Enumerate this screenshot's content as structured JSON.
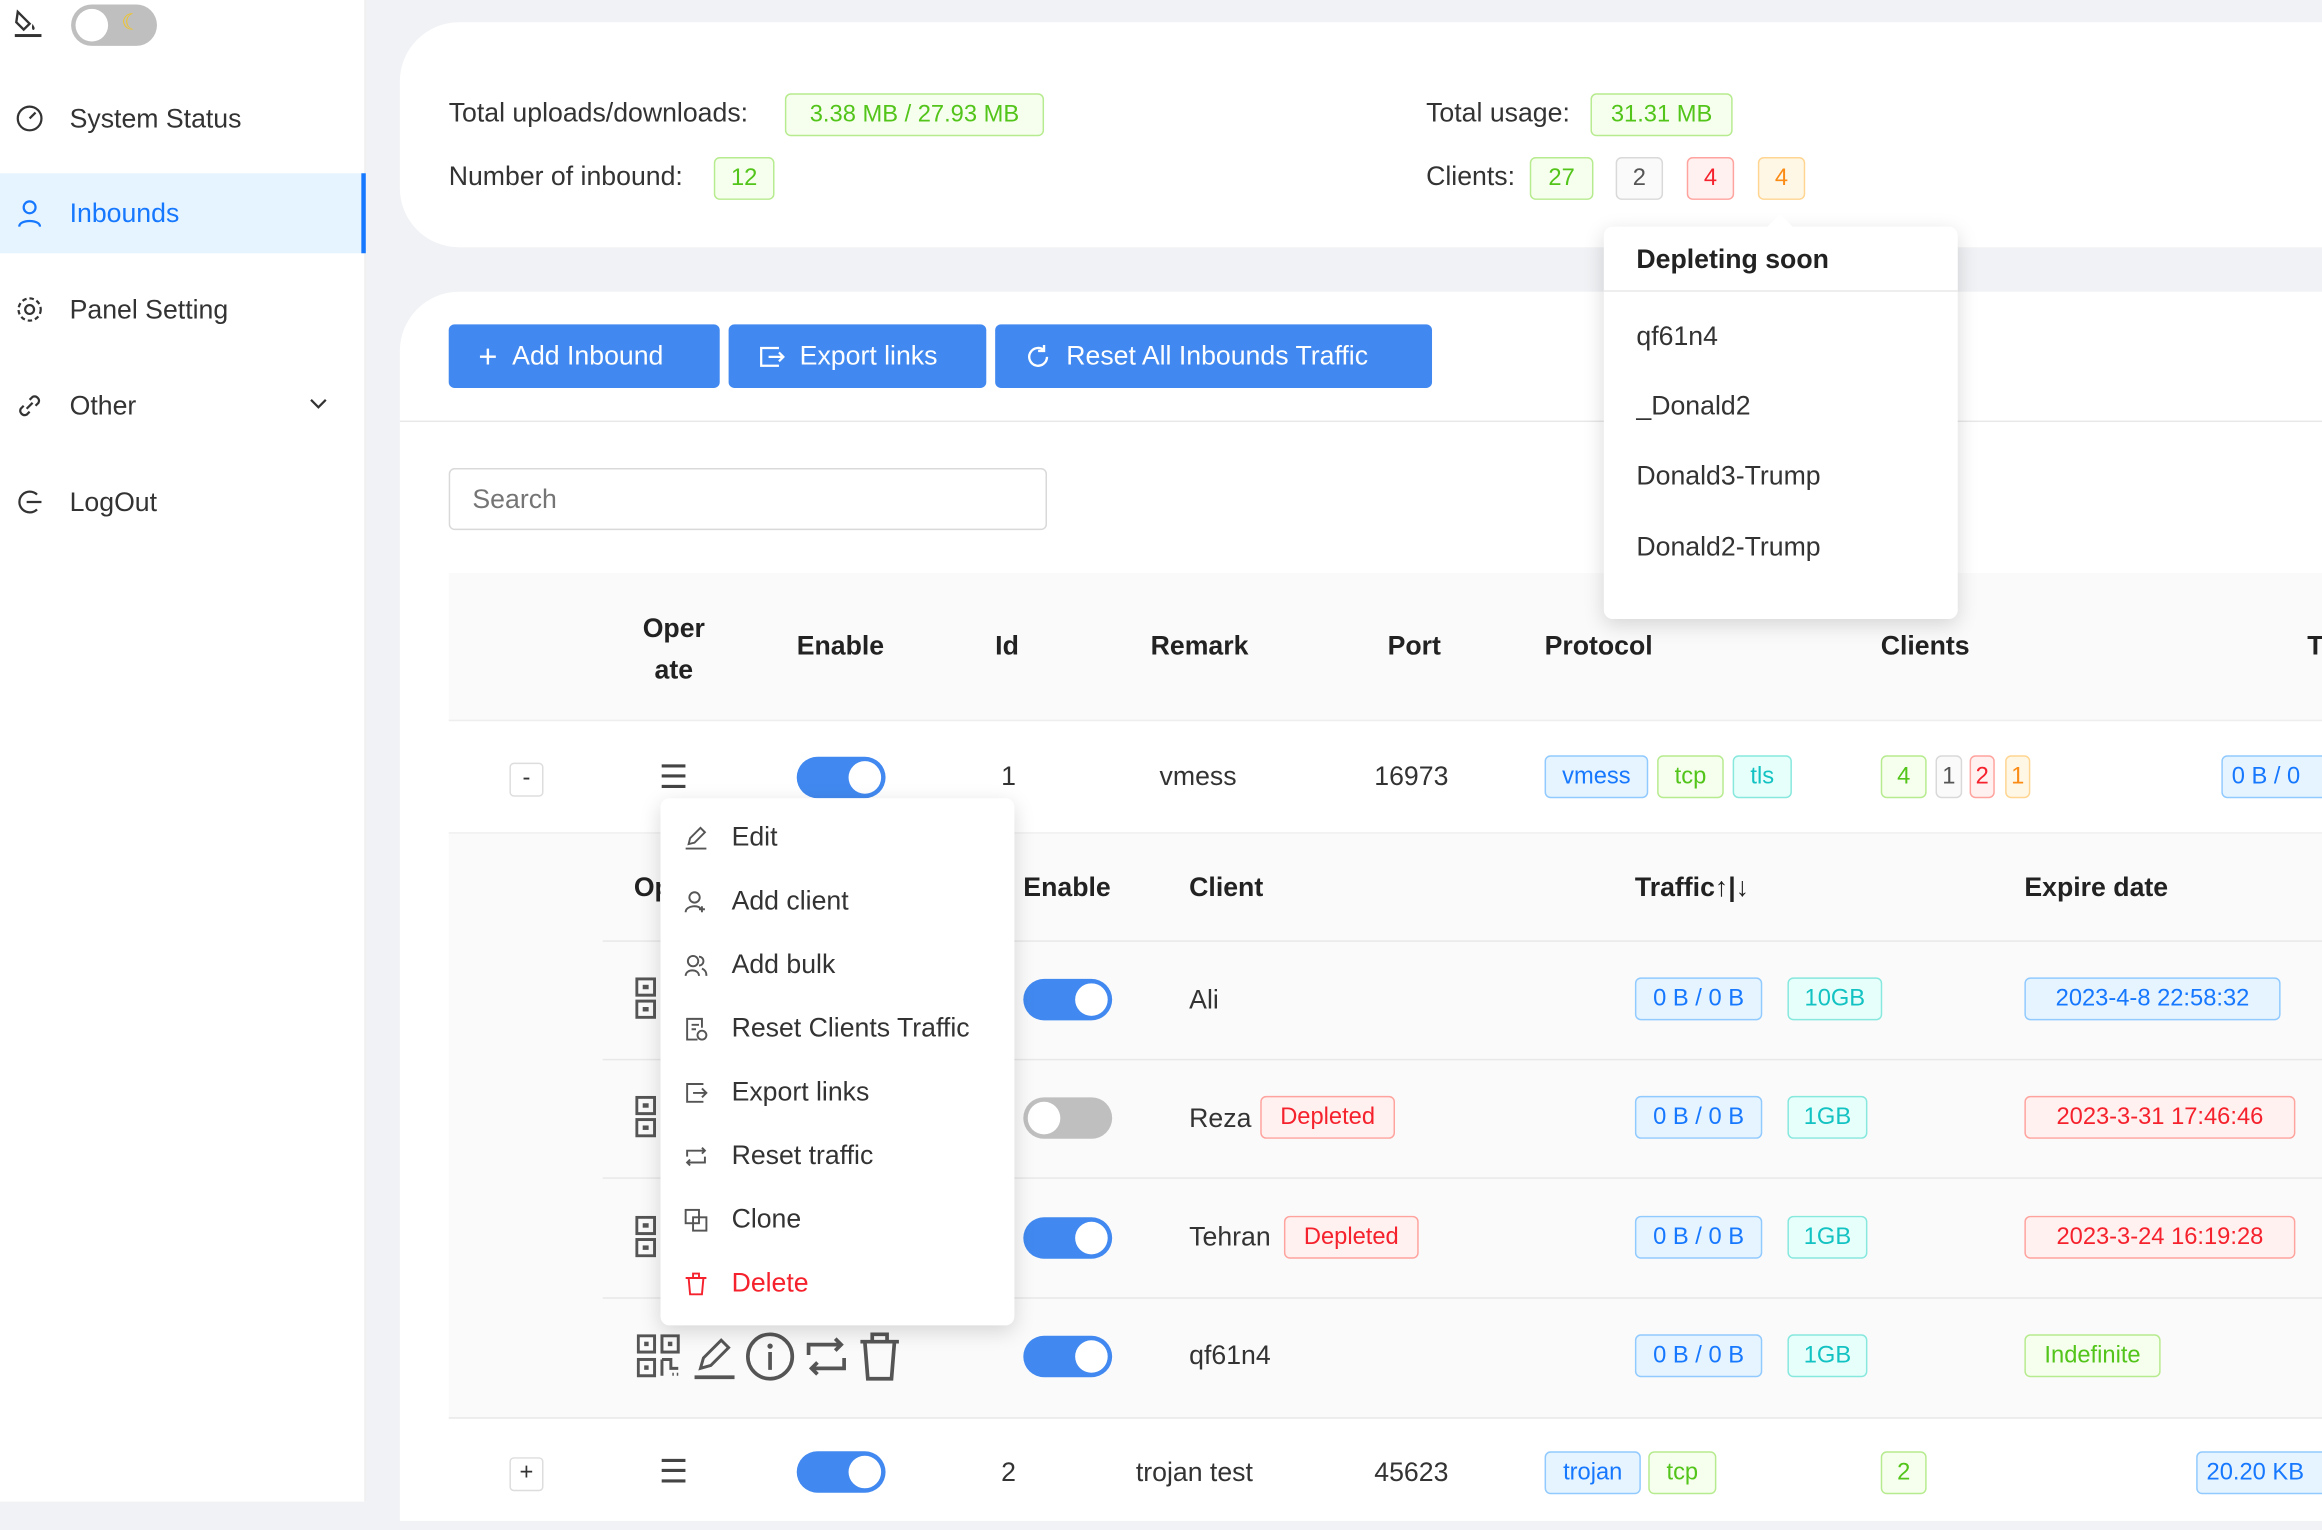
{
  "sidebar": {
    "theme_toggle": {
      "icon": "paint-bucket-icon",
      "dark_mode": false
    },
    "items": [
      {
        "label": "System Status",
        "icon": "dashboard-icon"
      },
      {
        "label": "Inbounds",
        "icon": "user-icon",
        "selected": true
      },
      {
        "label": "Panel Setting",
        "icon": "gear-icon"
      },
      {
        "label": "Other",
        "icon": "link-icon"
      },
      {
        "label": "LogOut",
        "icon": "logout-icon"
      }
    ]
  },
  "stats": {
    "uploads_label": "Total uploads/downloads:",
    "uploads_value": "3.38 MB / 27.93 MB",
    "inbound_label": "Number of inbound:",
    "inbound_value": "12",
    "usage_label": "Total usage:",
    "usage_value": "31.31 MB",
    "clients_label": "Clients:",
    "clients": [
      "27",
      "2",
      "4",
      "4"
    ]
  },
  "popover": {
    "title": "Depleting soon",
    "items": [
      "qf61n4",
      "_Donald2",
      "Donald3-Trump",
      "Donald2-Trump"
    ]
  },
  "toolbar": {
    "add_inbound": "Add Inbound",
    "export_links": "Export links",
    "reset_all": "Reset All Inbounds Traffic"
  },
  "search": {
    "placeholder": "Search",
    "value": ""
  },
  "table": {
    "headers": [
      "Oper ate",
      "Enable",
      "Id",
      "Remark",
      "Port",
      "Protocol",
      "Clients",
      "T"
    ],
    "rows": [
      {
        "expand": "-",
        "enabled": true,
        "id": "1",
        "remark": "vmess",
        "port": "16973",
        "protocol_tags": [
          "vmess",
          "tcp",
          "tls"
        ],
        "clients": [
          "4",
          "1",
          "2",
          "1"
        ],
        "traffic": "0 B / 0"
      },
      {
        "expand": "+",
        "enabled": true,
        "id": "2",
        "remark": "trojan test",
        "port": "45623",
        "protocol_tags": [
          "trojan",
          "tcp"
        ],
        "clients": [
          "2"
        ],
        "traffic": "20.20 KB"
      }
    ]
  },
  "client_table": {
    "headers": [
      "Op",
      "Enable",
      "Client",
      "Traffic↑|↓",
      "Expire date"
    ],
    "rows": [
      {
        "enabled": true,
        "client": "Ali",
        "badge": "",
        "traffic": "0 B / 0 B",
        "total": "10GB",
        "expire": "2023-4-8 22:58:32",
        "expire_status": "active"
      },
      {
        "enabled": false,
        "client": "Reza",
        "badge": "Depleted",
        "traffic": "0 B / 0 B",
        "total": "1GB",
        "expire": "2023-3-31 17:46:46",
        "expire_status": "expired"
      },
      {
        "enabled": true,
        "client": "Tehran",
        "badge": "Depleted",
        "traffic": "0 B / 0 B",
        "total": "1GB",
        "expire": "2023-3-24 16:19:28",
        "expire_status": "expired"
      },
      {
        "enabled": true,
        "client": "qf61n4",
        "badge": "",
        "traffic": "0 B / 0 B",
        "total": "1GB",
        "expire": "Indefinite",
        "expire_status": "indefinite"
      }
    ]
  },
  "context_menu": {
    "items": [
      {
        "label": "Edit",
        "icon": "edit-icon"
      },
      {
        "label": "Add client",
        "icon": "add-user-icon"
      },
      {
        "label": "Add bulk",
        "icon": "users-icon"
      },
      {
        "label": "Reset Clients Traffic",
        "icon": "file-reset-icon"
      },
      {
        "label": "Export links",
        "icon": "export-icon"
      },
      {
        "label": "Reset traffic",
        "icon": "retweet-icon"
      },
      {
        "label": "Clone",
        "icon": "copy-icon"
      },
      {
        "label": "Delete",
        "icon": "delete-icon",
        "danger": true
      }
    ]
  },
  "colors": {
    "primary": "#4189f0",
    "danger": "#f5222d",
    "success": "#52c41a",
    "warning": "#fa8c16"
  }
}
